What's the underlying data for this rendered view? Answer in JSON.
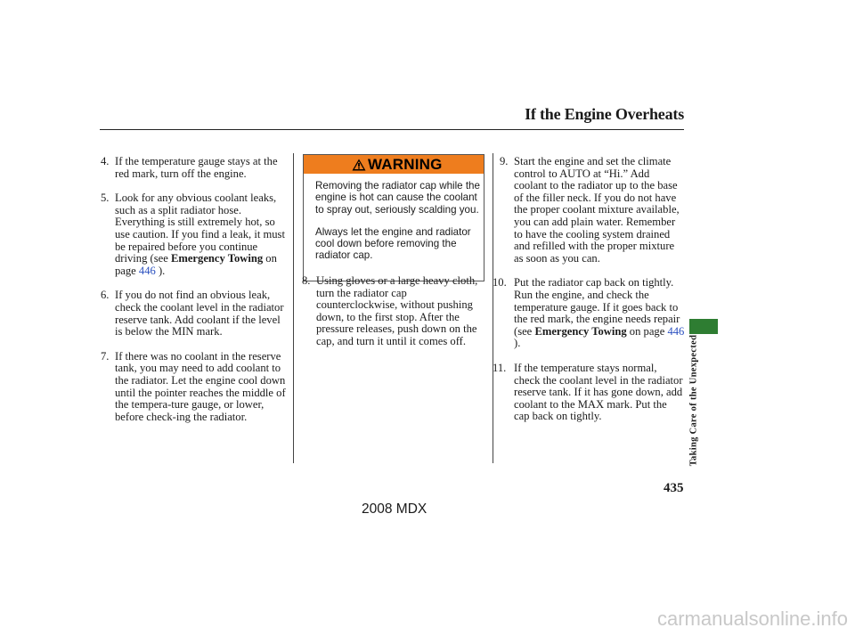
{
  "header": {
    "title": "If the Engine Overheats"
  },
  "left_column": {
    "items": [
      {
        "num": "4.",
        "text": "If the temperature gauge stays at the red mark, turn off the engine."
      },
      {
        "num": "5.",
        "text": "Look for any obvious coolant leaks, such as a split radiator hose. Everything is still extremely hot, so use caution. If you find a leak, it must be repaired before you continue driving (see ",
        "ref": "Emergency Towing",
        "page_prefix": " on page ",
        "page": "446",
        "tail": " )."
      },
      {
        "num": "6.",
        "text": "If you do not find an obvious leak, check the coolant level in the radiator reserve tank. Add coolant if the level is below the MIN mark."
      },
      {
        "num": "7.",
        "text": "If there was no coolant in the reserve tank, you may need to add coolant to the radiator. Let the engine cool down until the pointer reaches the middle of the tempera-ture gauge, or lower, before check-ing the radiator."
      }
    ]
  },
  "warning": {
    "label": "WARNING",
    "paragraphs": [
      "Removing the radiator cap while the engine is hot can cause the coolant to spray out, seriously scalding you.",
      "Always let the engine and radiator cool down before removing the radiator cap."
    ],
    "accent": "#ee7d1e"
  },
  "middle_column": {
    "items": [
      {
        "num": "8.",
        "text": "Using gloves or a large heavy cloth, turn the radiator cap counterclockwise, without pushing down, to the first stop. After the pressure releases, push down on the cap, and turn it until it comes off."
      }
    ]
  },
  "right_column": {
    "items": [
      {
        "num": "9.",
        "text": "Start the engine and set the climate control to AUTO at “Hi.” Add coolant to the radiator up to the base of the filler neck. If you do not have the proper coolant mixture available, you can add plain water. Remember to have the cooling system drained and refilled with the proper mixture as soon as you can."
      },
      {
        "num": "10.",
        "text": "Put the radiator cap back on tightly. Run the engine, and check the temperature gauge. If it goes back to the red mark, the engine needs repair (see ",
        "ref": "Emergency Towing",
        "page_prefix": " on page ",
        "page": "446",
        "tail": " )."
      },
      {
        "num": "11.",
        "text": "If the temperature stays normal, check the coolant level in the radiator reserve tank. If it has gone down, add coolant to the MAX mark. Put the cap back on tightly."
      }
    ]
  },
  "side_tab": {
    "label": "Taking Care of the Unexpected",
    "color": "#2e7d32"
  },
  "page_number": "435",
  "model_label": "2008  MDX",
  "watermark": "carmanualsonline.info"
}
